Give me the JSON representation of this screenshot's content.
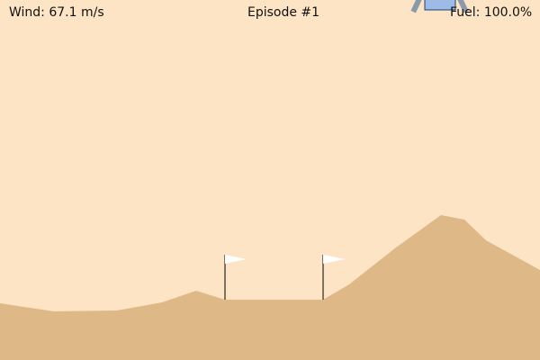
{
  "hud": {
    "wind": "Wind: 67.1 m/s",
    "episode": "Episode #1",
    "fuel": "Fuel: 100.0%"
  },
  "colors": {
    "sky": "#fde4c4",
    "terrain": "#dfb887",
    "lander_body": "#9dbbe6",
    "lander_outline": "#1f3f6e",
    "lander_legs": "#8a9aa8",
    "flag": "#ffffff",
    "pole": "#000000"
  },
  "icons": {
    "lander": "lunar-lander-icon",
    "flag": "landing-flag-icon"
  }
}
